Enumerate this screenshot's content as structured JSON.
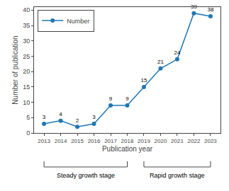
{
  "chart_data": {
    "type": "line",
    "x": [
      2013,
      2014,
      2015,
      2016,
      2017,
      2018,
      2019,
      2020,
      2021,
      2022,
      2023
    ],
    "series": [
      {
        "name": "Number",
        "values": [
          3,
          4,
          2,
          3,
          9,
          9,
          15,
          21,
          24,
          39,
          38
        ],
        "marker": "circle"
      }
    ],
    "xlabel": "Publication year",
    "ylabel": "Number of publication",
    "xlim": [
      2012.4,
      2023.6
    ],
    "xticks": [
      2013,
      2014,
      2015,
      2016,
      2017,
      2018,
      2019,
      2020,
      2021,
      2022,
      2023
    ],
    "ylim": [
      0,
      41
    ],
    "yticks": [
      0,
      5,
      10,
      15,
      20,
      25,
      30,
      35,
      40
    ],
    "data_labels": true,
    "legend": "upper left",
    "grid": false,
    "annotations": [
      {
        "text": "Steady growth stage",
        "start": 2013,
        "end": 2018
      },
      {
        "text": "Rapid growth stage",
        "start": 2019,
        "end": 2023
      }
    ]
  }
}
